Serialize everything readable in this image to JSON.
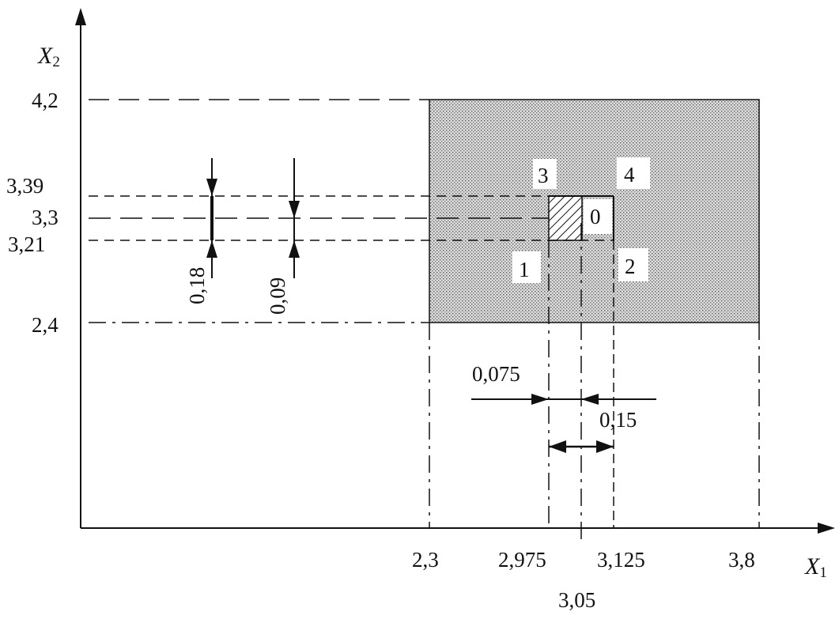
{
  "axes": {
    "y_name": "X",
    "y_sub": "2",
    "x_name": "X",
    "x_sub": "1"
  },
  "y_ticks": [
    "4,2",
    "3,39",
    "3,3",
    "3,21",
    "2,4"
  ],
  "x_ticks": [
    "2,3",
    "2,975",
    "3,125",
    "3,8",
    "3,05"
  ],
  "point_labels": [
    "3",
    "4",
    "0",
    "1",
    "2"
  ],
  "dimensions": {
    "dim_018": "0,18",
    "dim_009": "0,09",
    "dim_0075": "0,075",
    "dim_015": "0,15"
  },
  "colors": {
    "ink": "#111111",
    "region_fill": "#c8c8c8",
    "hatch": "#111111"
  }
}
